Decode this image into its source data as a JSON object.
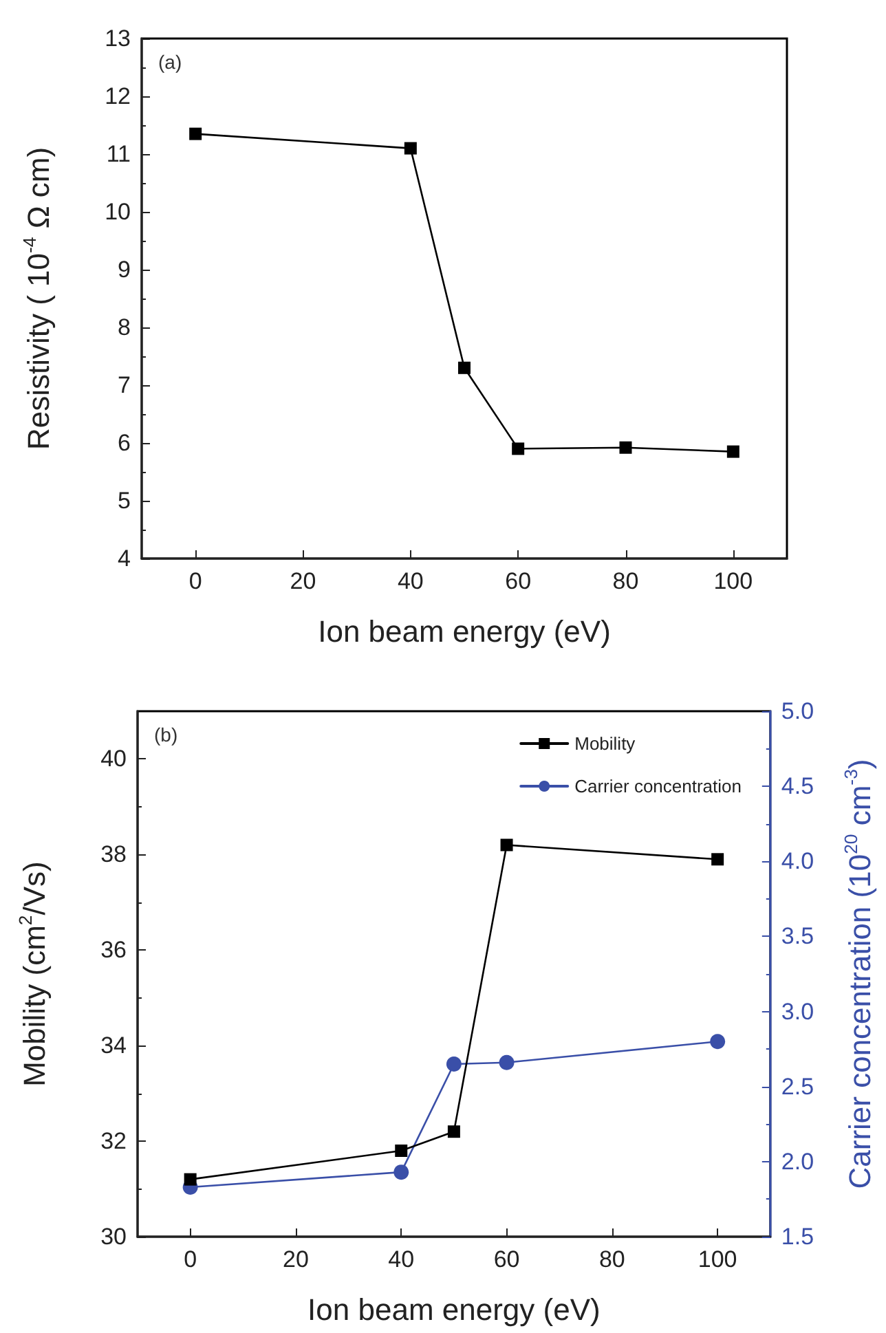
{
  "chart_data": [
    {
      "type": "line",
      "xlabel": "Ion beam energy (eV)",
      "ylabel": "Resistivity ( 10$^{-4}$ Ω cm)",
      "annotations": [
        "(a)"
      ],
      "x": [
        0,
        40,
        50,
        60,
        80,
        100
      ],
      "series": [
        {
          "color": "#000000",
          "marker": "square",
          "values": [
            11.35,
            11.1,
            7.3,
            5.9,
            5.92,
            5.85
          ]
        }
      ],
      "xlim": [
        -10,
        110
      ],
      "xticks": [
        0,
        20,
        40,
        60,
        80,
        100
      ],
      "ylim": [
        4,
        13
      ],
      "yticks": [
        4,
        5,
        6,
        7,
        8,
        9,
        10,
        11,
        12,
        13
      ],
      "grid": false,
      "legend": false,
      "line_style": "solid"
    },
    {
      "type": "line",
      "xlabel": "Ion beam energy (eV)",
      "ylabel": "Mobility (cm$^{2}$/Vs)",
      "y2label": "Carrier concentration (10$^{20}$ cm$^{-3}$)",
      "annotations": [
        "(b)"
      ],
      "x": [
        0,
        40,
        50,
        60,
        100
      ],
      "series": [
        {
          "name": "Mobility",
          "color": "#000000",
          "marker": "square",
          "values": [
            31.2,
            31.8,
            32.2,
            38.2,
            37.9
          ]
        },
        {
          "name": "Carrier concentration",
          "color": "#3a4fa8",
          "marker": "circle",
          "axis": "y2",
          "values": [
            1.83,
            1.93,
            2.65,
            2.66,
            2.8
          ]
        }
      ],
      "xlim": [
        -10,
        110
      ],
      "xticks": [
        0,
        20,
        40,
        60,
        80,
        100
      ],
      "ylim": [
        30,
        41
      ],
      "yticks": [
        30,
        32,
        34,
        36,
        38,
        40
      ],
      "y2lim": [
        1.5,
        5.0
      ],
      "y2ticks": [
        1.5,
        {
          "value": 2,
          "label": "2.0"
        },
        2.5,
        {
          "value": 3,
          "label": "3.0"
        },
        3.5,
        {
          "value": 4,
          "label": "4.0"
        },
        4.5,
        {
          "value": 5,
          "label": "5.0"
        }
      ],
      "grid": false,
      "legend": "top right",
      "line_style": "solid"
    }
  ]
}
